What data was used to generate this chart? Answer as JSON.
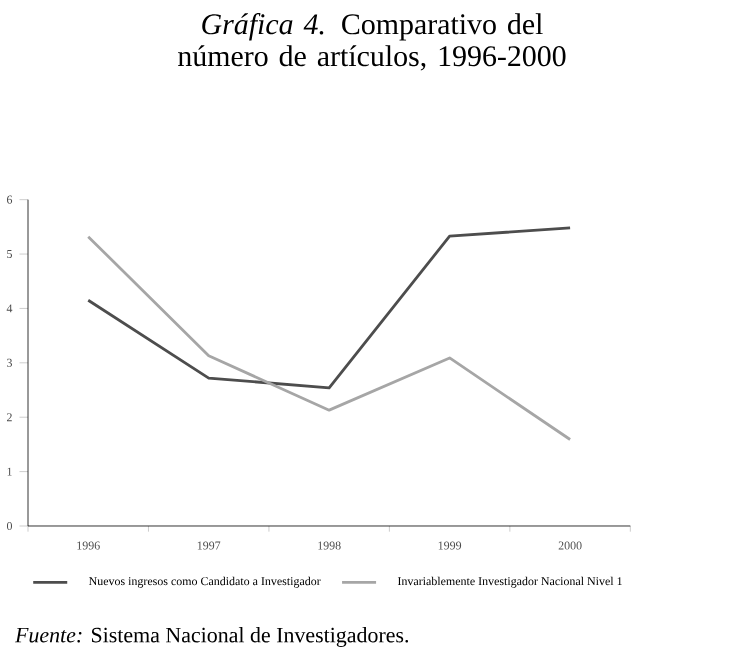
{
  "chart_data": {
    "type": "line",
    "title": "*Gráfica 4.* Comparativo del número de artículos, 1996-2000",
    "categories": [
      "1996",
      "1997",
      "1998",
      "1999",
      "2000"
    ],
    "series": [
      {
        "name": "Nuevos ingresos como Candidato a Investigador",
        "color": "#4d4d4d",
        "values": [
          4.15,
          2.72,
          2.54,
          5.33,
          5.48
        ]
      },
      {
        "name": "Invariablemente Investigador Nacional Nivel 1",
        "color": "#a6a6a6",
        "values": [
          5.32,
          3.13,
          2.13,
          3.09,
          1.59
        ]
      }
    ],
    "ylim": [
      0,
      6
    ],
    "yticks": [
      0,
      1,
      2,
      3,
      4,
      5,
      6
    ],
    "grid": false,
    "legend": "bottom",
    "marker": "none",
    "line_style": "solid",
    "annotations": [
      "*Fuente:* Sistema Nacional de Investigadores."
    ]
  }
}
